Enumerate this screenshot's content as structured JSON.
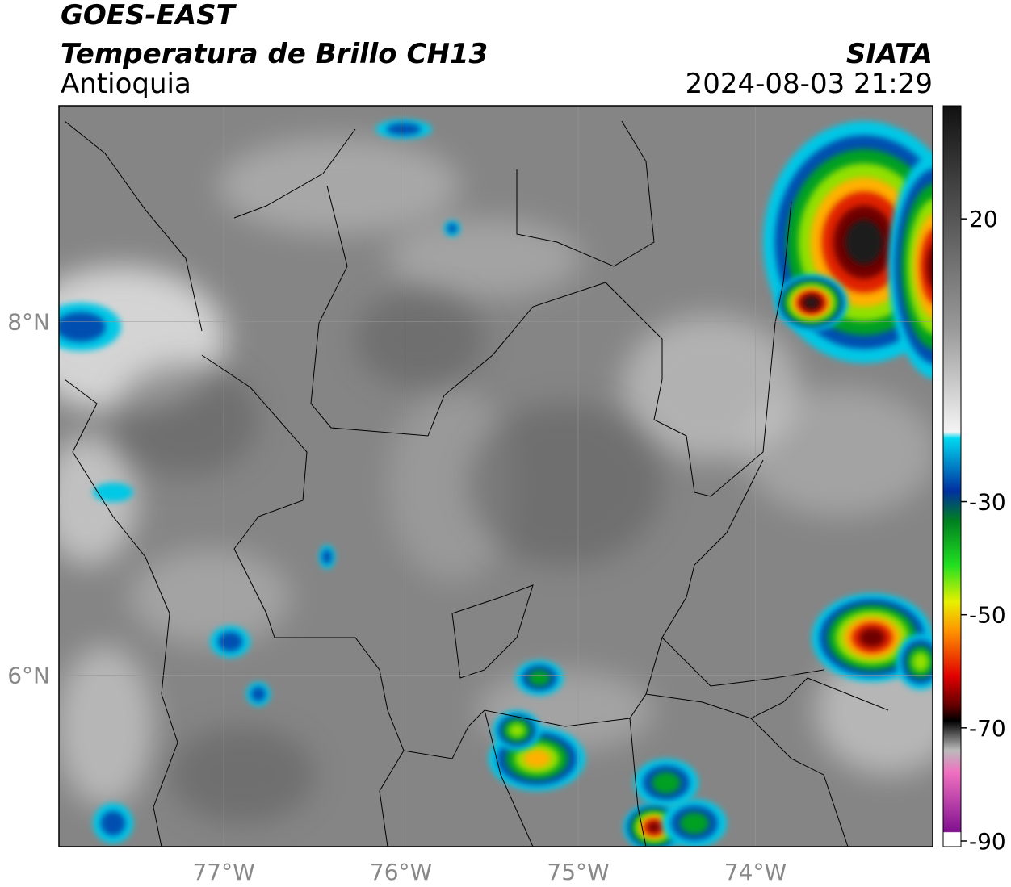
{
  "header": {
    "title": "GOES-EAST",
    "subtitle": "Temperatura de Brillo CH13",
    "region": "Antioquia",
    "source": "SIATA",
    "timestamp": "2024-08-03 21:29"
  },
  "map": {
    "lon_range": [
      -77.93,
      -73
    ],
    "lat_range": [
      5.03,
      9.22
    ],
    "lat_ticks": [
      {
        "value": 8,
        "label": "8°N"
      },
      {
        "value": 6,
        "label": "6°N"
      }
    ],
    "lon_ticks": [
      {
        "value": -77,
        "label": "77°W"
      },
      {
        "value": -76,
        "label": "76°W"
      },
      {
        "value": -75,
        "label": "75°W"
      },
      {
        "value": -74,
        "label": "74°W"
      }
    ]
  },
  "colorbar": {
    "range": [
      -91,
      40
    ],
    "ticks": [
      20,
      -30,
      -50,
      -70,
      -90
    ]
  }
}
